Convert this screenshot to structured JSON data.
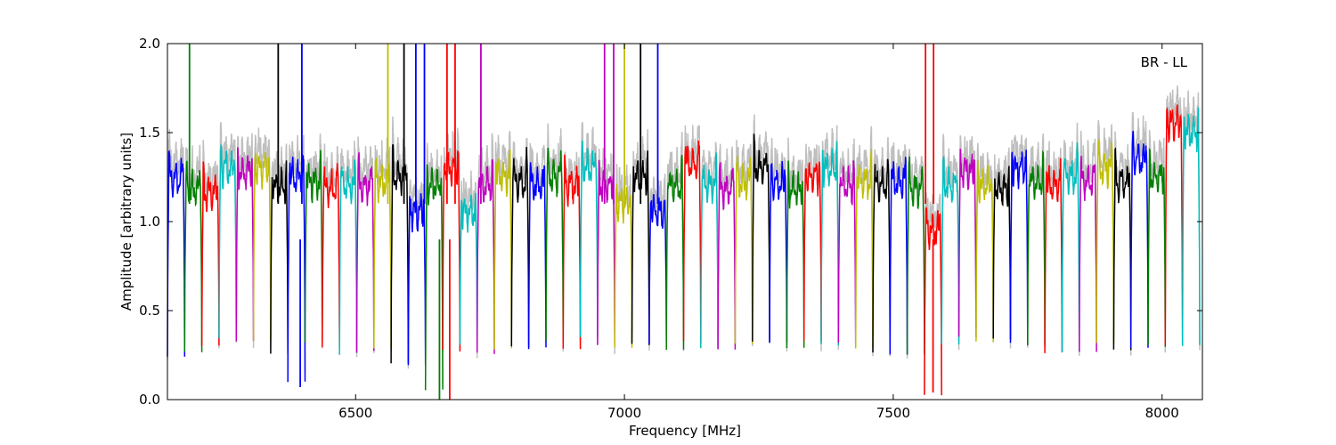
{
  "chart_data": {
    "type": "line",
    "title": "",
    "xlabel": "Frequency [MHz]",
    "ylabel": "Amplitude [arbitrary units]",
    "annotation": "BR - LL",
    "annotation_placement": "top-right",
    "xlim": [
      6150,
      8075
    ],
    "ylim": [
      0.0,
      2.0
    ],
    "x_ticks": [
      6500,
      7000,
      7500,
      8000
    ],
    "x_tick_labels": [
      "6500",
      "7000",
      "7500",
      "8000"
    ],
    "y_ticks": [
      0.0,
      0.5,
      1.0,
      1.5,
      2.0
    ],
    "y_tick_labels": [
      "0.0",
      "0.5",
      "1.0",
      "1.5",
      "2.0"
    ],
    "grid": false,
    "legend": "none",
    "palette": [
      "#0000ff",
      "#008000",
      "#ff0000",
      "#00bfbf",
      "#bf00bf",
      "#bfbf00",
      "#000000"
    ],
    "masked_color": "#bfbfbf",
    "channel_width_mhz": 32,
    "channel_starts": [
      6150,
      6182,
      6214,
      6246,
      6278,
      6310,
      6342,
      6374,
      6406,
      6438,
      6470,
      6502,
      6534,
      6566,
      6598,
      6630,
      6662,
      6694,
      6726,
      6758,
      6790,
      6822,
      6854,
      6886,
      6918,
      6950,
      6982,
      7014,
      7046,
      7078,
      7110,
      7142,
      7174,
      7206,
      7238,
      7270,
      7302,
      7334,
      7366,
      7398,
      7430,
      7462,
      7494,
      7526,
      7558,
      7590,
      7622,
      7654,
      7686,
      7718,
      7750,
      7782,
      7814,
      7846,
      7878,
      7910,
      7942,
      7974,
      8006,
      8038
    ],
    "channel_plateau": [
      1.24,
      1.18,
      1.16,
      1.3,
      1.28,
      1.3,
      1.2,
      1.25,
      1.22,
      1.18,
      1.2,
      1.2,
      1.22,
      1.25,
      1.05,
      1.2,
      1.3,
      1.05,
      1.2,
      1.25,
      1.22,
      1.2,
      1.25,
      1.2,
      1.3,
      1.2,
      1.1,
      1.25,
      1.05,
      1.2,
      1.32,
      1.2,
      1.18,
      1.22,
      1.3,
      1.22,
      1.18,
      1.25,
      1.3,
      1.2,
      1.22,
      1.2,
      1.22,
      1.18,
      0.95,
      1.2,
      1.28,
      1.2,
      1.18,
      1.3,
      1.22,
      1.2,
      1.25,
      1.22,
      1.3,
      1.22,
      1.35,
      1.25,
      1.55,
      1.5
    ],
    "channel_edge_dip": [
      0.27,
      0.27,
      0.32,
      0.33,
      0.32,
      0.3,
      0.25,
      0.08,
      0.33,
      0.3,
      0.28,
      0.28,
      0.3,
      0.2,
      0.18,
      0.05,
      0.25,
      0.3,
      0.25,
      0.3,
      0.3,
      0.32,
      0.33,
      0.3,
      0.33,
      0.3,
      0.26,
      0.3,
      0.3,
      0.28,
      0.33,
      0.3,
      0.3,
      0.32,
      0.33,
      0.3,
      0.28,
      0.3,
      0.3,
      0.3,
      0.3,
      0.27,
      0.28,
      0.26,
      0.05,
      0.3,
      0.35,
      0.3,
      0.32,
      0.3,
      0.3,
      0.27,
      0.28,
      0.3,
      0.32,
      0.3,
      0.28,
      0.3,
      0.28,
      0.3
    ],
    "spikes": [
      {
        "x": 6191,
        "y": 2.0
      },
      {
        "x": 6356,
        "y": 2.0
      },
      {
        "x": 6400,
        "y": 2.0
      },
      {
        "x": 6560,
        "y": 2.0
      },
      {
        "x": 6590,
        "y": 2.0
      },
      {
        "x": 6612,
        "y": 2.0
      },
      {
        "x": 6628,
        "y": 2.0
      },
      {
        "x": 6670,
        "y": 2.0
      },
      {
        "x": 6685,
        "y": 2.0
      },
      {
        "x": 6733,
        "y": 2.0
      },
      {
        "x": 6963,
        "y": 2.0
      },
      {
        "x": 6980,
        "y": 2.0
      },
      {
        "x": 7000,
        "y": 2.0
      },
      {
        "x": 7030,
        "y": 2.0
      },
      {
        "x": 7062,
        "y": 2.0
      },
      {
        "x": 7560,
        "y": 2.0
      },
      {
        "x": 7575,
        "y": 2.0
      }
    ],
    "deep_dips": [
      {
        "x": 6397,
        "y": 0.07
      },
      {
        "x": 6656,
        "y": 0.0
      },
      {
        "x": 6675,
        "y": 0.0
      },
      {
        "x": 7574,
        "y": 0.04
      }
    ]
  }
}
